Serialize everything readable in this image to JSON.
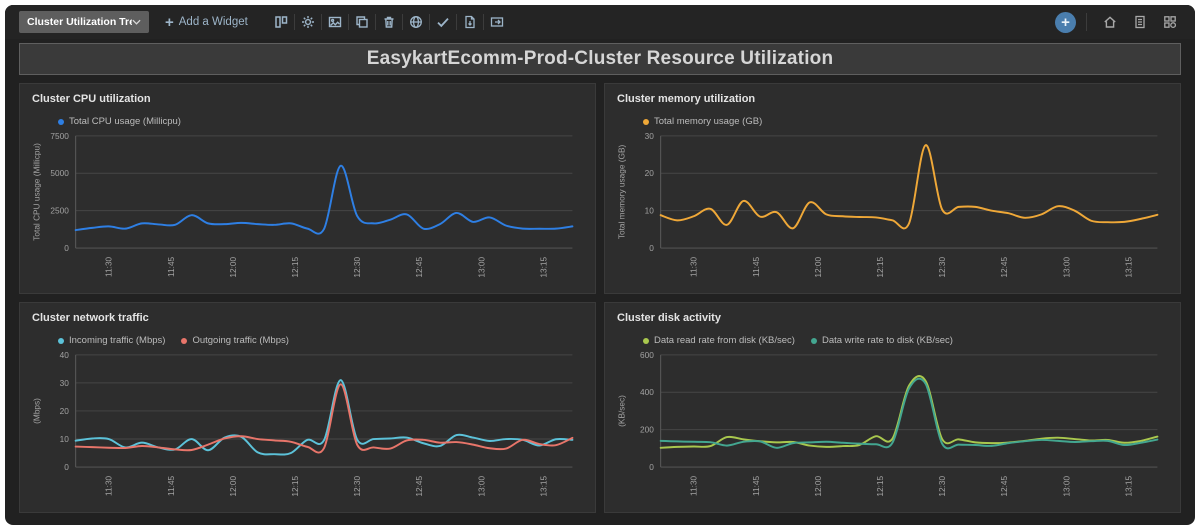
{
  "toolbar": {
    "view_selector_label": "Cluster Utilization Trend",
    "add_widget_label": "Add a Widget",
    "action_icon_names": [
      "layout",
      "settings",
      "image",
      "clone",
      "delete",
      "globe",
      "check",
      "download-report",
      "export"
    ],
    "right_icon_names": [
      "add",
      "home",
      "report",
      "widgets"
    ]
  },
  "banner": {
    "title": "EasykartEcomm-Prod-Cluster Resource Utilization"
  },
  "colors": {
    "accent_button": "#4a7eae",
    "panel_background": "#2d2d2d",
    "page_background": "#212121",
    "cpu_line": "#2e7fe4",
    "memory_line": "#efa838",
    "incoming_line": "#5cc2d9",
    "outgoing_line": "#e8756a",
    "disk_read_line": "#a9c84e",
    "disk_write_line": "#43a690"
  },
  "chart_data": [
    {
      "type": "line",
      "panel_title": "Cluster CPU utilization",
      "ylabel": "Total CPU usage (Millicpu)",
      "ylim": [
        0,
        7500
      ],
      "yticks": [
        0,
        2500,
        5000,
        7500
      ],
      "grid": "horizontal",
      "legend_position": "top-left",
      "x_tick_labels": [
        "11:30",
        "11:45",
        "12:00",
        "12:15",
        "12:30",
        "12:45",
        "13:00",
        "13:15"
      ],
      "x": [
        "11:22",
        "11:26",
        "11:30",
        "11:34",
        "11:38",
        "11:42",
        "11:46",
        "11:50",
        "11:54",
        "11:58",
        "12:02",
        "12:06",
        "12:10",
        "12:14",
        "12:18",
        "12:22",
        "12:26",
        "12:30",
        "12:34",
        "12:38",
        "12:42",
        "12:46",
        "12:50",
        "12:54",
        "12:58",
        "13:02",
        "13:06",
        "13:10",
        "13:14",
        "13:18",
        "13:22"
      ],
      "series": [
        {
          "name": "Total CPU usage (Millicpu)",
          "color": "#2e7fe4",
          "values": [
            1200,
            1350,
            1450,
            1300,
            1650,
            1580,
            1550,
            2200,
            1650,
            1600,
            1680,
            1600,
            1550,
            1650,
            1300,
            1280,
            5500,
            2150,
            1650,
            1900,
            2250,
            1300,
            1600,
            2350,
            1750,
            2050,
            1500,
            1300,
            1290,
            1300,
            1450
          ]
        }
      ]
    },
    {
      "type": "line",
      "panel_title": "Cluster memory utilization",
      "ylabel": "Total memory usage (GB)",
      "ylim": [
        0,
        30
      ],
      "yticks": [
        0,
        10,
        20,
        30
      ],
      "grid": "horizontal",
      "legend_position": "top-left",
      "x_tick_labels": [
        "11:30",
        "11:45",
        "12:00",
        "12:15",
        "12:30",
        "12:45",
        "13:00",
        "13:15"
      ],
      "x": [
        "11:22",
        "11:26",
        "11:30",
        "11:34",
        "11:38",
        "11:42",
        "11:46",
        "11:50",
        "11:54",
        "11:58",
        "12:02",
        "12:06",
        "12:10",
        "12:14",
        "12:18",
        "12:22",
        "12:26",
        "12:30",
        "12:34",
        "12:38",
        "12:42",
        "12:46",
        "12:50",
        "12:54",
        "12:58",
        "13:02",
        "13:06",
        "13:10",
        "13:14",
        "13:18",
        "13:22"
      ],
      "series": [
        {
          "name": "Total memory usage (GB)",
          "color": "#efa838",
          "values": [
            8.8,
            7.4,
            8.5,
            10.5,
            6.2,
            12.6,
            8.4,
            9.6,
            5.3,
            12.2,
            9.0,
            8.5,
            8.3,
            8.2,
            7.4,
            6.6,
            27.5,
            10.3,
            11.0,
            11.0,
            10.0,
            9.3,
            8.1,
            9.0,
            11.2,
            10.0,
            7.3,
            6.9,
            7.0,
            7.8,
            8.9
          ]
        }
      ]
    },
    {
      "type": "line",
      "panel_title": "Cluster network traffic",
      "ylabel": "(Mbps)",
      "ylim": [
        0,
        40
      ],
      "yticks": [
        0,
        10,
        20,
        30,
        40
      ],
      "grid": "horizontal",
      "legend_position": "top-left",
      "x_tick_labels": [
        "11:30",
        "11:45",
        "12:00",
        "12:15",
        "12:30",
        "12:45",
        "13:00",
        "13:15"
      ],
      "x": [
        "11:22",
        "11:26",
        "11:30",
        "11:34",
        "11:38",
        "11:42",
        "11:46",
        "11:50",
        "11:54",
        "11:58",
        "12:02",
        "12:06",
        "12:10",
        "12:14",
        "12:18",
        "12:22",
        "12:26",
        "12:30",
        "12:34",
        "12:38",
        "12:42",
        "12:46",
        "12:50",
        "12:54",
        "12:58",
        "13:02",
        "13:06",
        "13:10",
        "13:14",
        "13:18",
        "13:22"
      ],
      "series": [
        {
          "name": "Incoming traffic (Mbps)",
          "color": "#5cc2d9",
          "values": [
            9.4,
            10.2,
            10.0,
            7.0,
            8.7,
            7.0,
            6.3,
            10.0,
            6.0,
            10.5,
            10.8,
            5.2,
            4.6,
            5.0,
            9.7,
            9.6,
            31.0,
            9.8,
            10.0,
            10.2,
            10.5,
            8.5,
            7.5,
            11.4,
            10.5,
            9.3,
            10.0,
            9.7,
            7.7,
            9.9,
            9.7
          ]
        },
        {
          "name": "Outgoing traffic (Mbps)",
          "color": "#e8756a",
          "values": [
            7.3,
            7.1,
            6.9,
            6.8,
            7.5,
            7.0,
            6.3,
            6.1,
            8.0,
            10.2,
            11.0,
            10.0,
            9.5,
            9.0,
            7.2,
            6.8,
            29.5,
            8.0,
            7.0,
            6.6,
            9.5,
            9.7,
            8.7,
            8.9,
            8.0,
            6.7,
            6.6,
            9.7,
            8.2,
            7.8,
            10.4
          ]
        }
      ]
    },
    {
      "type": "line",
      "panel_title": "Cluster disk activity",
      "ylabel": "(KB/sec)",
      "ylim": [
        0,
        600
      ],
      "yticks": [
        0,
        200,
        400,
        600
      ],
      "grid": "horizontal",
      "legend_position": "top-left",
      "x_tick_labels": [
        "11:30",
        "11:45",
        "12:00",
        "12:15",
        "12:30",
        "12:45",
        "13:00",
        "13:15"
      ],
      "x": [
        "11:22",
        "11:26",
        "11:30",
        "11:34",
        "11:38",
        "11:42",
        "11:46",
        "11:50",
        "11:54",
        "11:58",
        "12:02",
        "12:06",
        "12:10",
        "12:14",
        "12:18",
        "12:22",
        "12:26",
        "12:30",
        "12:34",
        "12:38",
        "12:42",
        "12:46",
        "12:50",
        "12:54",
        "12:58",
        "13:02",
        "13:06",
        "13:10",
        "13:14",
        "13:18",
        "13:22"
      ],
      "series": [
        {
          "name": "Data read rate from disk (KB/sec)",
          "color": "#a9c84e",
          "values": [
            103,
            108,
            110,
            112,
            160,
            148,
            138,
            132,
            134,
            115,
            108,
            112,
            118,
            165,
            152,
            435,
            460,
            150,
            148,
            132,
            128,
            131,
            140,
            152,
            157,
            150,
            142,
            145,
            130,
            140,
            163
          ]
        },
        {
          "name": "Data write rate to disk (KB/sec)",
          "color": "#43a690",
          "values": [
            140,
            137,
            135,
            133,
            115,
            135,
            137,
            103,
            128,
            132,
            135,
            130,
            125,
            122,
            130,
            420,
            445,
            125,
            120,
            118,
            113,
            128,
            138,
            145,
            140,
            134,
            138,
            140,
            118,
            130,
            147
          ]
        }
      ]
    }
  ]
}
